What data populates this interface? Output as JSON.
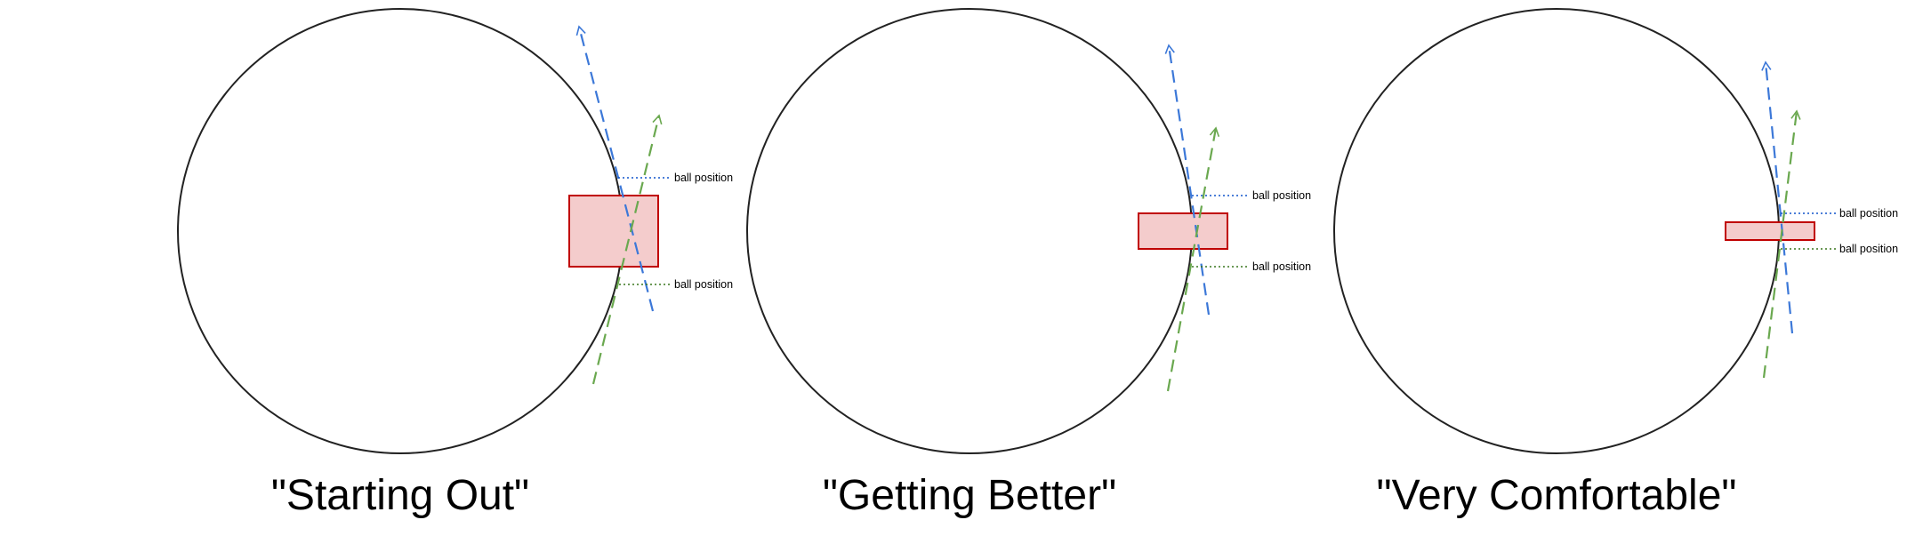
{
  "colors": {
    "circle_stroke": "#222222",
    "zone_fill": "#f4cccc",
    "zone_stroke": "#c00000",
    "blue_line": "#3c78d8",
    "green_line": "#6aa84f",
    "blue_marker": "#1155cc",
    "green_marker": "#38761d"
  },
  "panels": [
    {
      "title": "\"Starting Out\"",
      "upper_label": "ball position",
      "lower_label": "ball position"
    },
    {
      "title": "\"Getting Better\"",
      "upper_label": "ball position",
      "lower_label": "ball position"
    },
    {
      "title": "\"Very Comfortable\"",
      "upper_label": "ball position",
      "lower_label": "ball position"
    }
  ]
}
